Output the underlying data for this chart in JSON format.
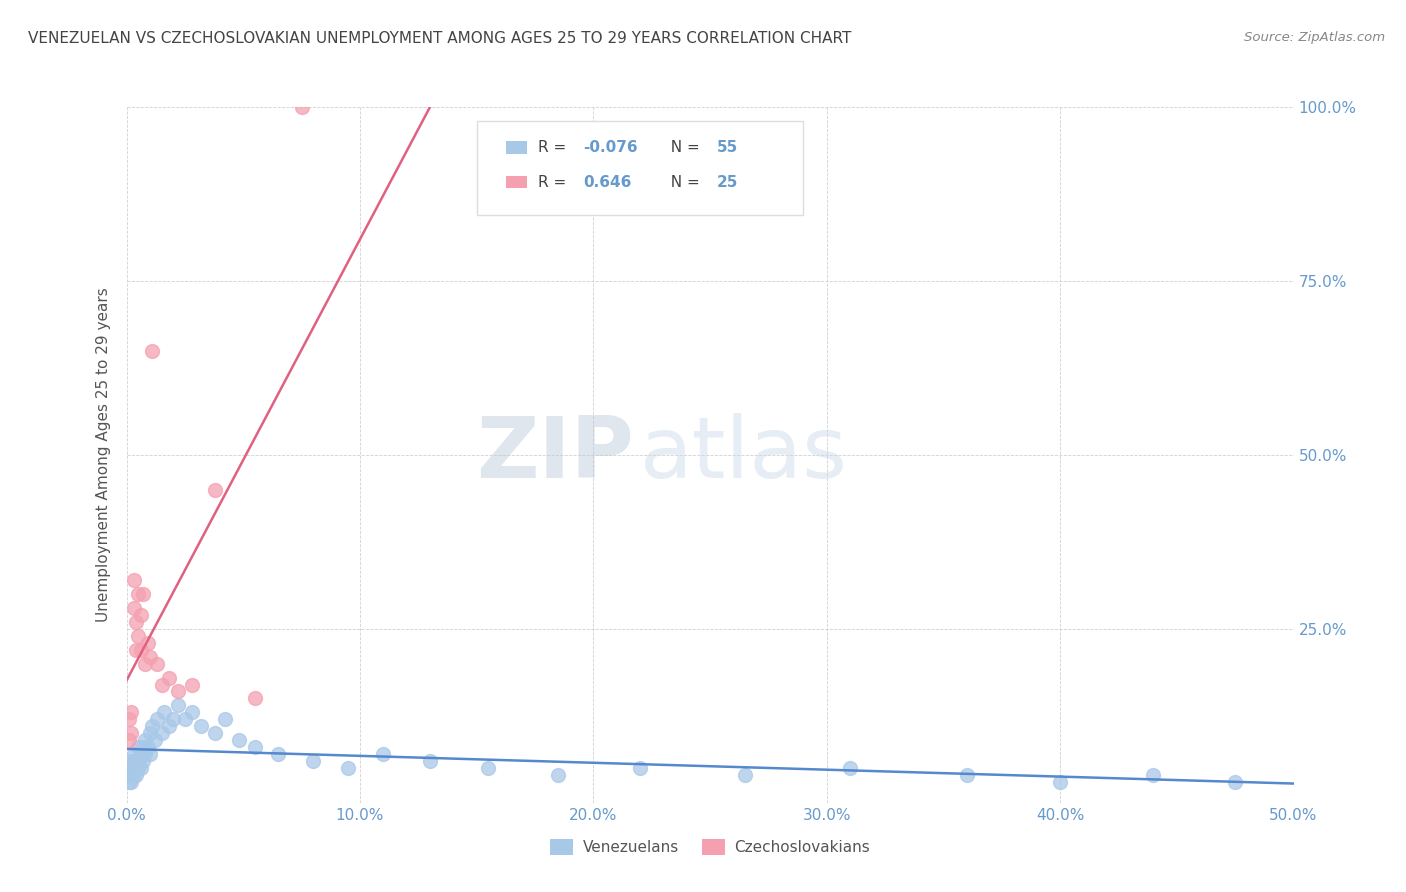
{
  "title": "VENEZUELAN VS CZECHOSLOVAKIAN UNEMPLOYMENT AMONG AGES 25 TO 29 YEARS CORRELATION CHART",
  "source": "Source: ZipAtlas.com",
  "ylabel": "Unemployment Among Ages 25 to 29 years",
  "xlim": [
    0.0,
    0.5
  ],
  "ylim": [
    0.0,
    1.0
  ],
  "xtick_vals": [
    0.0,
    0.1,
    0.2,
    0.3,
    0.4,
    0.5
  ],
  "ytick_vals": [
    0.0,
    0.25,
    0.5,
    0.75,
    1.0
  ],
  "xtick_labels": [
    "0.0%",
    "10.0%",
    "20.0%",
    "30.0%",
    "40.0%",
    "50.0%"
  ],
  "ytick_labels_right": [
    "",
    "25.0%",
    "50.0%",
    "75.0%",
    "100.0%"
  ],
  "venezuelan_x": [
    0.001,
    0.001,
    0.001,
    0.002,
    0.002,
    0.002,
    0.002,
    0.003,
    0.003,
    0.003,
    0.003,
    0.004,
    0.004,
    0.004,
    0.005,
    0.005,
    0.005,
    0.006,
    0.006,
    0.007,
    0.007,
    0.008,
    0.008,
    0.009,
    0.01,
    0.01,
    0.011,
    0.012,
    0.013,
    0.015,
    0.016,
    0.018,
    0.02,
    0.022,
    0.025,
    0.028,
    0.032,
    0.038,
    0.042,
    0.048,
    0.055,
    0.065,
    0.08,
    0.095,
    0.11,
    0.13,
    0.155,
    0.185,
    0.22,
    0.265,
    0.31,
    0.36,
    0.4,
    0.44,
    0.475
  ],
  "venezuelan_y": [
    0.04,
    0.03,
    0.05,
    0.04,
    0.06,
    0.03,
    0.05,
    0.04,
    0.06,
    0.05,
    0.07,
    0.05,
    0.06,
    0.04,
    0.08,
    0.06,
    0.05,
    0.07,
    0.05,
    0.08,
    0.06,
    0.09,
    0.07,
    0.08,
    0.1,
    0.07,
    0.11,
    0.09,
    0.12,
    0.1,
    0.13,
    0.11,
    0.12,
    0.14,
    0.12,
    0.13,
    0.11,
    0.1,
    0.12,
    0.09,
    0.08,
    0.07,
    0.06,
    0.05,
    0.07,
    0.06,
    0.05,
    0.04,
    0.05,
    0.04,
    0.05,
    0.04,
    0.03,
    0.04,
    0.03
  ],
  "czechoslovakian_x": [
    0.001,
    0.001,
    0.002,
    0.002,
    0.003,
    0.003,
    0.004,
    0.004,
    0.005,
    0.005,
    0.006,
    0.006,
    0.007,
    0.008,
    0.009,
    0.01,
    0.011,
    0.013,
    0.015,
    0.018,
    0.022,
    0.028,
    0.038,
    0.055,
    0.075
  ],
  "czechoslovakian_y": [
    0.09,
    0.12,
    0.1,
    0.13,
    0.28,
    0.32,
    0.22,
    0.26,
    0.3,
    0.24,
    0.22,
    0.27,
    0.3,
    0.2,
    0.23,
    0.21,
    0.65,
    0.2,
    0.17,
    0.18,
    0.16,
    0.17,
    0.45,
    0.15,
    1.0
  ],
  "venezuelan_color": "#a8c8e8",
  "czechoslovakian_color": "#f4a0b0",
  "venezuelan_line_color": "#5588cc",
  "czechoslovakian_line_color": "#e06080",
  "venezuelan_R": -0.076,
  "venezuelan_N": 55,
  "czechoslovakian_R": 0.646,
  "czechoslovakian_N": 25,
  "watermark_zip": "ZIP",
  "watermark_atlas": "atlas",
  "background_color": "#ffffff",
  "grid_color": "#cccccc",
  "title_color": "#444444",
  "axis_label_color": "#6699cc",
  "legend_box_color": "#dddddd"
}
